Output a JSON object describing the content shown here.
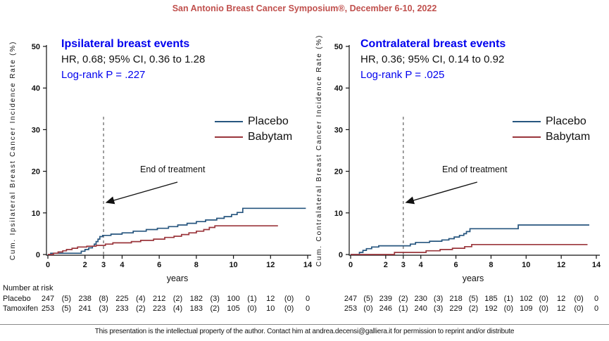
{
  "header": {
    "title": "San Antonio Breast Cancer Symposium®, December 6-10, 2022"
  },
  "colors": {
    "header_red": "#C0504D",
    "accent_blue": "#0000EE",
    "placebo": "#27567F",
    "babytam": "#9A353B",
    "dashed_line": "#777777",
    "axis": "#111111"
  },
  "chart_data": [
    {
      "type": "line",
      "step": true,
      "title": "Ipsilateral breast events",
      "stats": "HR, 0.68; 95% CI, 0.36 to 1.28",
      "logrank": "Log-rank P = .227",
      "ylabel": "Cum. Ipsilateral Breast Cancer Incidence Rate (%)",
      "xlabel": "years",
      "xlim": [
        0,
        14
      ],
      "ylim": [
        0,
        50
      ],
      "xticks": [
        0,
        2,
        3,
        4,
        6,
        8,
        10,
        12,
        14
      ],
      "yticks": [
        0,
        10,
        20,
        30,
        40,
        50
      ],
      "treatment_end_x": 3,
      "annotation": "End of treatment",
      "legend_position": "right-upper",
      "grid": false,
      "series": [
        {
          "name": "Placebo",
          "color": "placebo",
          "points": [
            [
              0,
              0
            ],
            [
              0.15,
              0.3
            ],
            [
              1.8,
              0.8
            ],
            [
              2.0,
              1.2
            ],
            [
              2.2,
              1.6
            ],
            [
              2.4,
              2.0
            ],
            [
              2.5,
              2.5
            ],
            [
              2.6,
              3.1
            ],
            [
              2.7,
              3.7
            ],
            [
              2.8,
              4.3
            ],
            [
              2.95,
              4.6
            ],
            [
              3.4,
              4.9
            ],
            [
              4.0,
              5.2
            ],
            [
              4.6,
              5.6
            ],
            [
              5.3,
              6.0
            ],
            [
              5.9,
              6.3
            ],
            [
              6.5,
              6.7
            ],
            [
              7.0,
              7.1
            ],
            [
              7.5,
              7.5
            ],
            [
              8.0,
              7.9
            ],
            [
              8.5,
              8.3
            ],
            [
              9.1,
              8.7
            ],
            [
              9.5,
              9.1
            ],
            [
              9.9,
              9.6
            ],
            [
              10.2,
              10.1
            ],
            [
              10.5,
              11.1
            ],
            [
              13.9,
              11.1
            ]
          ]
        },
        {
          "name": "Babytam",
          "color": "babytam",
          "points": [
            [
              0,
              0
            ],
            [
              0.3,
              0.3
            ],
            [
              0.55,
              0.6
            ],
            [
              0.8,
              0.9
            ],
            [
              1.0,
              1.2
            ],
            [
              1.3,
              1.5
            ],
            [
              1.6,
              1.8
            ],
            [
              2.1,
              2.0
            ],
            [
              2.6,
              2.2
            ],
            [
              3.1,
              2.5
            ],
            [
              3.5,
              2.8
            ],
            [
              4.5,
              3.1
            ],
            [
              5.0,
              3.4
            ],
            [
              5.7,
              3.7
            ],
            [
              6.3,
              4.1
            ],
            [
              6.8,
              4.4
            ],
            [
              7.2,
              4.8
            ],
            [
              7.6,
              5.2
            ],
            [
              8.0,
              5.6
            ],
            [
              8.4,
              6.0
            ],
            [
              8.7,
              6.5
            ],
            [
              9.0,
              6.9
            ],
            [
              12.4,
              6.9
            ]
          ]
        }
      ]
    },
    {
      "type": "line",
      "step": true,
      "title": "Contralateral breast events",
      "stats": "HR, 0.36; 95% CI, 0.14 to 0.92",
      "logrank": "Log-rank P = .025",
      "ylabel": "Cum. Contralateral Breast Cancer Incidence Rate (%)",
      "xlabel": "years",
      "xlim": [
        0,
        14
      ],
      "ylim": [
        0,
        50
      ],
      "xticks": [
        0,
        2,
        3,
        4,
        6,
        8,
        10,
        12,
        14
      ],
      "yticks": [
        0,
        10,
        20,
        30,
        40,
        50
      ],
      "treatment_end_x": 3,
      "annotation": "End of treatment",
      "legend_position": "right-upper",
      "grid": false,
      "series": [
        {
          "name": "Placebo",
          "color": "placebo",
          "points": [
            [
              0,
              0
            ],
            [
              0.5,
              0.5
            ],
            [
              0.7,
              1.0
            ],
            [
              0.9,
              1.4
            ],
            [
              1.2,
              1.8
            ],
            [
              1.6,
              2.1
            ],
            [
              3.4,
              2.5
            ],
            [
              3.7,
              2.9
            ],
            [
              4.5,
              3.2
            ],
            [
              5.2,
              3.5
            ],
            [
              5.6,
              3.8
            ],
            [
              5.9,
              4.2
            ],
            [
              6.2,
              4.6
            ],
            [
              6.45,
              5.0
            ],
            [
              6.6,
              5.5
            ],
            [
              6.8,
              6.2
            ],
            [
              9.55,
              7.1
            ],
            [
              13.6,
              7.1
            ]
          ]
        },
        {
          "name": "Babytam",
          "color": "babytam",
          "points": [
            [
              0,
              0
            ],
            [
              2.5,
              0.5
            ],
            [
              4.3,
              0.9
            ],
            [
              5.1,
              1.2
            ],
            [
              5.8,
              1.5
            ],
            [
              6.5,
              1.9
            ],
            [
              6.9,
              2.4
            ],
            [
              13.5,
              2.4
            ]
          ]
        }
      ]
    }
  ],
  "risk_table": {
    "heading": "Number at risk",
    "row_labels": [
      "Placebo",
      "Tamoxifen"
    ],
    "panels": [
      {
        "rows": [
          {
            "counts": [
              247,
              238,
              225,
              212,
              182,
              100,
              12,
              0
            ],
            "events": [
              "(5)",
              "(8)",
              "(4)",
              "(2)",
              "(3)",
              "(1)",
              "(0)"
            ]
          },
          {
            "counts": [
              253,
              241,
              233,
              223,
              183,
              105,
              10,
              0
            ],
            "events": [
              "(5)",
              "(3)",
              "(2)",
              "(4)",
              "(2)",
              "(0)",
              "(0)"
            ]
          }
        ]
      },
      {
        "rows": [
          {
            "counts": [
              247,
              239,
              230,
              218,
              185,
              102,
              12,
              0
            ],
            "events": [
              "(5)",
              "(2)",
              "(3)",
              "(5)",
              "(1)",
              "(0)",
              "(0)"
            ]
          },
          {
            "counts": [
              253,
              246,
              240,
              229,
              192,
              109,
              12,
              0
            ],
            "events": [
              "(0)",
              "(1)",
              "(3)",
              "(2)",
              "(0)",
              "(0)",
              "(0)"
            ]
          }
        ]
      }
    ]
  },
  "footer": {
    "text": "This presentation is the intellectual property of the author. Contact him at andrea.decensi@galliera.it for permission to reprint and/or distribute"
  }
}
